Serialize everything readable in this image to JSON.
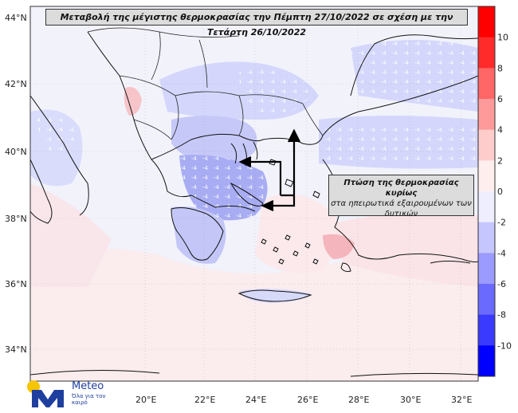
{
  "title": "Μεταβολή της μέγιστης θερμοκρασίας την Πέμπτη 27/10/2022 σε σχέση με την Τετάρτη 26/10/2022",
  "callout": {
    "line1": "Πτώση της θερμοκρασίας κυρίως",
    "line2": "στα ηπειρωτικά εξαιρουμένων των",
    "line3": "δυτικών"
  },
  "lat_labels": [
    "44°N",
    "42°N",
    "40°N",
    "38°N",
    "36°N",
    "34°N"
  ],
  "lon_labels": [
    "20°E",
    "22°E",
    "24°E",
    "26°E",
    "28°E",
    "30°E",
    "32°E"
  ],
  "colorbar": {
    "ticks": [
      "10",
      "8",
      "6",
      "4",
      "2",
      "0",
      "-2",
      "-4",
      "-6",
      "-8",
      "-10"
    ],
    "colors": [
      "#ff0000",
      "#ff2a2a",
      "#ff6666",
      "#ff9a9a",
      "#ffcccc",
      "#ffeeee",
      "#eeeeff",
      "#c6c6ff",
      "#9a9aff",
      "#6a6aff",
      "#3a3aff",
      "#0000ff"
    ]
  },
  "logo": {
    "brand": "Meteo",
    "tagline": "Όλα για τον καιρό"
  },
  "colors": {
    "land_base": "#f2f2fb",
    "sea_warm": "#fbecee",
    "cool_light": "#d4d7fb",
    "cool_mid": "#9ea4f2",
    "warm_patch": "#f4b6bc",
    "brand_yellow": "#f7c400",
    "brand_blue": "#1f3f9f"
  }
}
